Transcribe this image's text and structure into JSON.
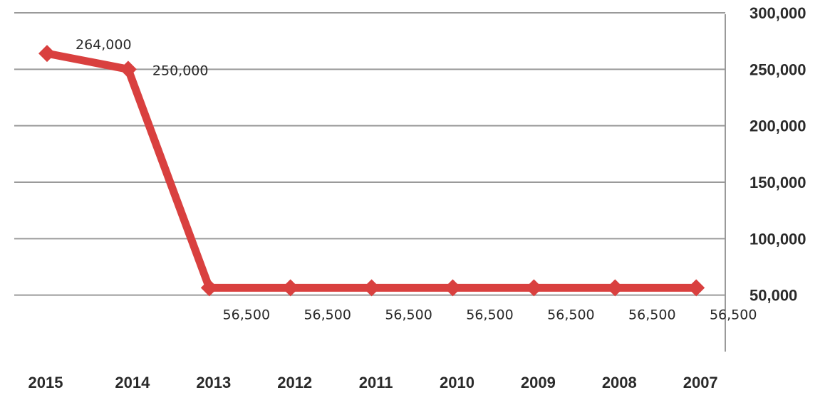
{
  "chart_data": {
    "type": "line",
    "title": "",
    "xlabel": "",
    "ylabel": "",
    "categories": [
      "2015",
      "2014",
      "2013",
      "2012",
      "2011",
      "2010",
      "2009",
      "2008",
      "2007"
    ],
    "series": [
      {
        "values": [
          264000,
          250000,
          56500,
          56500,
          56500,
          56500,
          56500,
          56500,
          56500
        ]
      }
    ],
    "data_labels": [
      "264,000",
      "250,000",
      "56,500",
      "56,500",
      "56,500",
      "56,500",
      "56,500",
      "56,500",
      "56,500"
    ],
    "y_ticks": [
      {
        "value": 50000,
        "label": "50,000"
      },
      {
        "value": 100000,
        "label": "100,000"
      },
      {
        "value": 150000,
        "label": "150,000"
      },
      {
        "value": 200000,
        "label": "200,000"
      },
      {
        "value": 250000,
        "label": "250,000"
      },
      {
        "value": 300000,
        "label": "300,000"
      }
    ],
    "ylim": [
      0,
      300000
    ],
    "y_axis_side": "right",
    "grid": true,
    "legend": "none",
    "colors": {
      "line": "#d9403f",
      "grid": "#9a9a9a",
      "axis": "#9a9a9a"
    }
  }
}
